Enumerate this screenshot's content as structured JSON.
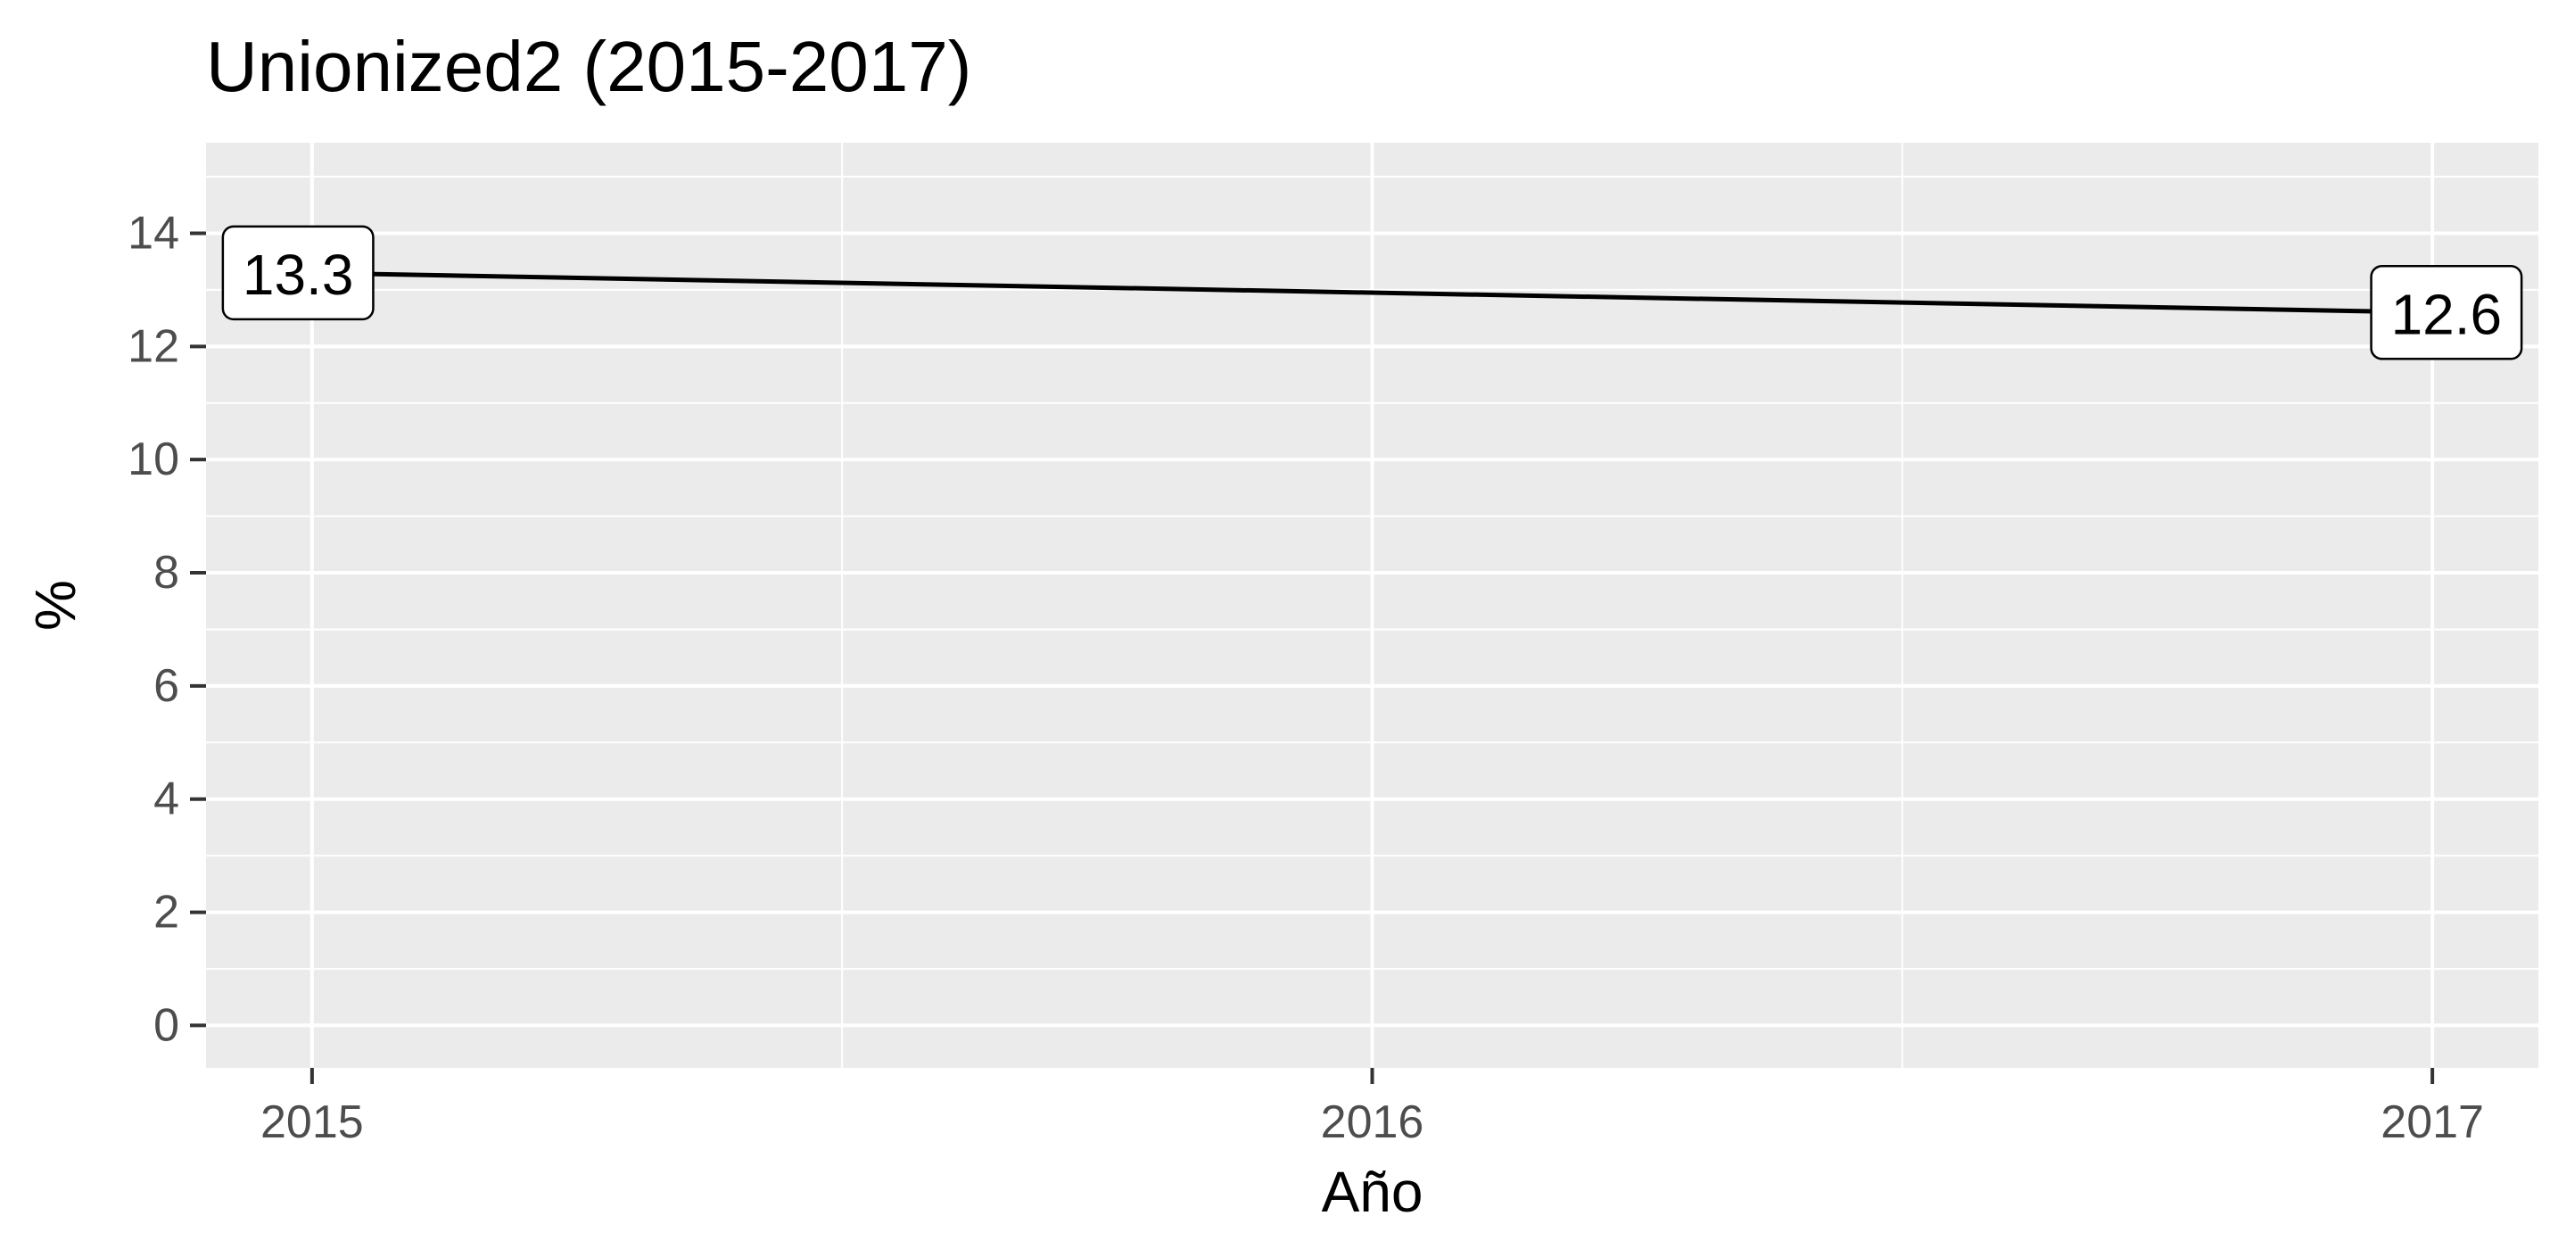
{
  "chart_data": {
    "type": "line",
    "title": "Unionized2 (2015-2017)",
    "xlabel": "Año",
    "ylabel": "%",
    "x": [
      2015,
      2017
    ],
    "series": [
      {
        "values": [
          13.3,
          12.6
        ],
        "color": "#000000"
      }
    ],
    "data_labels": [
      "13.3",
      "12.6"
    ],
    "x_ticks": [
      2015,
      2016,
      2017
    ],
    "x_tick_labels": [
      "2015",
      "2016",
      "2017"
    ],
    "y_ticks": [
      0,
      2,
      4,
      6,
      8,
      10,
      12,
      14
    ],
    "y_tick_labels": [
      "0",
      "2",
      "4",
      "6",
      "8",
      "10",
      "12",
      "14"
    ],
    "xlim": [
      2014.9,
      2017.1
    ],
    "ylim": [
      -0.75,
      15.6
    ],
    "grid": true,
    "legend": "none",
    "colors": {
      "panel": "#ebebeb",
      "grid": "#ffffff",
      "line": "#000000",
      "tick_text": "#4d4d4d"
    }
  }
}
